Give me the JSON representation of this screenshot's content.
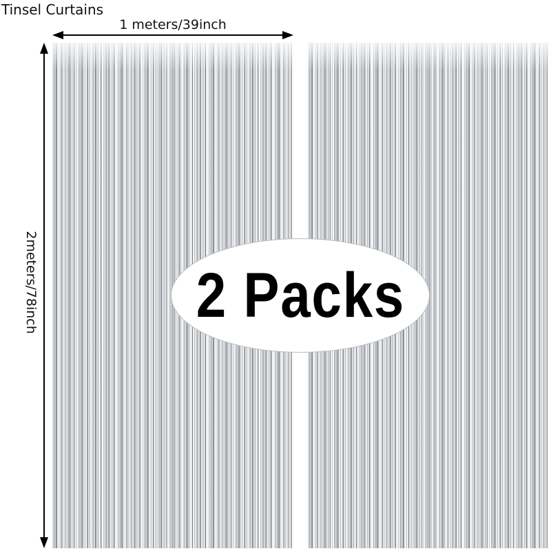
{
  "title": "Tinsel Curtains",
  "width_label": "1 meters/39inch",
  "height_label": "2meters/78inch",
  "badge": "2 Packs",
  "colors": {
    "tinsel": "#c9ccce",
    "text": "#111111"
  }
}
